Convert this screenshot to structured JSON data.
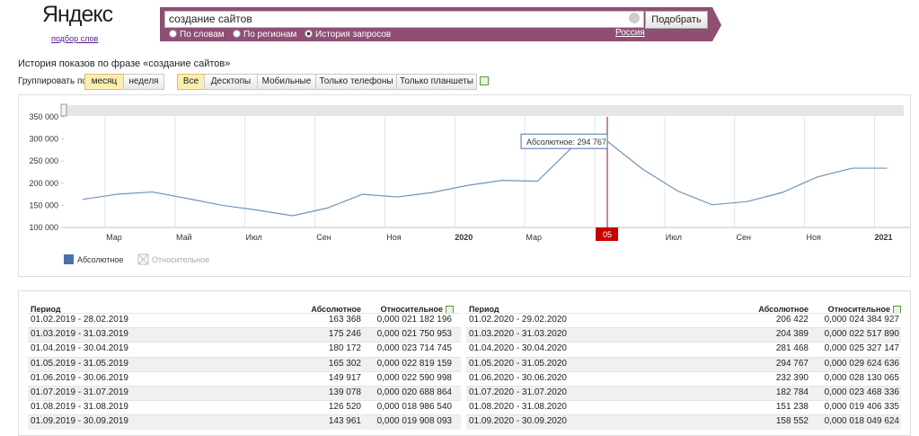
{
  "header": {
    "logo": "Яндекс",
    "logo_link": "подбор слов",
    "query": "создание сайтов",
    "button": "Подобрать",
    "modes": [
      "По словам",
      "По регионам",
      "История запросов"
    ],
    "region": "Россия"
  },
  "page_title": "История показов по фразе «создание сайтов»",
  "group_label": "Группировать по:",
  "group_options": [
    "месяц",
    "неделя"
  ],
  "device_tabs": [
    "Все",
    "Десктопы",
    "Мобильные",
    "Только телефоны",
    "Только планшеты"
  ],
  "chart_data": {
    "type": "line",
    "categories": [
      null,
      "Мар",
      null,
      "Май",
      null,
      "Июл",
      null,
      "Сен",
      null,
      "Ноя",
      null,
      "2020",
      null,
      "Мар",
      null,
      "Май",
      null,
      "Июл",
      null,
      "Сен",
      null,
      "Ноя",
      null,
      "2021"
    ],
    "series": [
      {
        "name": "Абсолютное",
        "color": "#6f93b8",
        "values": [
          163368,
          175246,
          180172,
          165302,
          149917,
          139078,
          126520,
          143961,
          175000,
          169000,
          179000,
          195000,
          206422,
          204389,
          281468,
          294767,
          232390,
          182784,
          151238,
          158552,
          179000,
          214000,
          234000,
          234000
        ]
      }
    ],
    "inactive_legend": "Относительное",
    "ylim": [
      100000,
      350000
    ],
    "yticks": [
      {
        "value": 100000,
        "label": "100 000"
      },
      {
        "value": 150000,
        "label": "150 000"
      },
      {
        "value": 200000,
        "label": "200 000"
      },
      {
        "value": 250000,
        "label": "250 000"
      },
      {
        "value": 300000,
        "label": "300 000"
      },
      {
        "value": 350000,
        "label": "350 000"
      }
    ],
    "tooltip": "Абсолютное: 294 767",
    "marker_label": "05",
    "legend_color": "#4a72a8"
  },
  "table": {
    "header": [
      "Период",
      "Абсолютное",
      "Относительное"
    ],
    "left_rows": [
      [
        "01.02.2019 - 28.02.2019",
        "163 368",
        "0,000 021 182 196"
      ],
      [
        "01.03.2019 - 31.03.2019",
        "175 246",
        "0,000 021 750 953"
      ],
      [
        "01.04.2019 - 30.04.2019",
        "180 172",
        "0,000 023 714 745"
      ],
      [
        "01.05.2019 - 31.05.2019",
        "165 302",
        "0,000 022 819 159"
      ],
      [
        "01.06.2019 - 30.06.2019",
        "149 917",
        "0,000 022 590 998"
      ],
      [
        "01.07.2019 - 31.07.2019",
        "139 078",
        "0,000 020 688 864"
      ],
      [
        "01.08.2019 - 31.08.2019",
        "126 520",
        "0,000 018 986 540"
      ],
      [
        "01.09.2019 - 30.09.2019",
        "143 961",
        "0,000 019 908 093"
      ]
    ],
    "right_rows": [
      [
        "01.02.2020 - 29.02.2020",
        "206 422",
        "0,000 024 384 927"
      ],
      [
        "01.03.2020 - 31.03.2020",
        "204 389",
        "0,000 022 517 890"
      ],
      [
        "01.04.2020 - 30.04.2020",
        "281 468",
        "0,000 025 327 147"
      ],
      [
        "01.05.2020 - 31.05.2020",
        "294 767",
        "0,000 029 624 636"
      ],
      [
        "01.06.2020 - 30.06.2020",
        "232 390",
        "0,000 028 130 065"
      ],
      [
        "01.07.2020 - 31.07.2020",
        "182 784",
        "0,000 023 468 336"
      ],
      [
        "01.08.2020 - 31.08.2020",
        "151 238",
        "0,000 019 406 335"
      ],
      [
        "01.09.2020 - 30.09.2020",
        "158 552",
        "0,000 018 049 624"
      ]
    ]
  }
}
